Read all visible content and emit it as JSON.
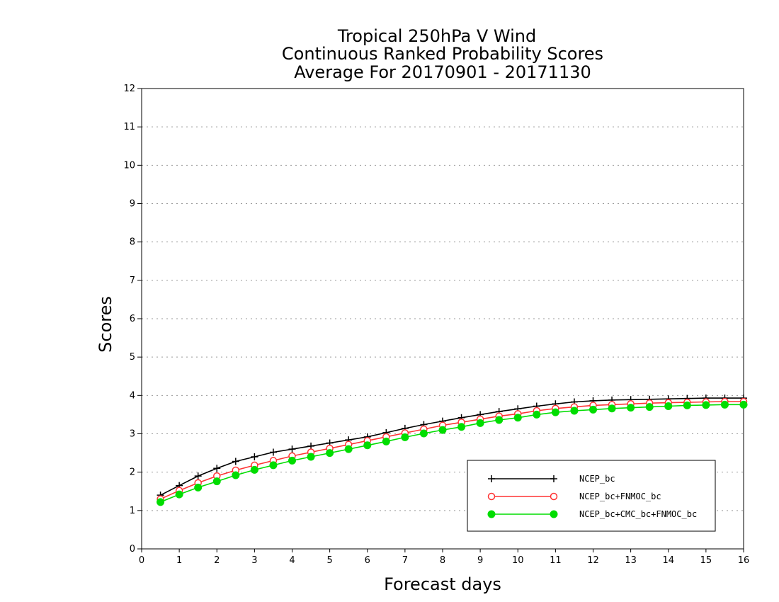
{
  "chart_data": {
    "type": "line",
    "title": [
      "Tropical 250hPa V Wind",
      "Continuous Ranked Probability Scores",
      "Average For 20170901 - 20171130"
    ],
    "xlabel": "Forecast days",
    "ylabel": "Scores",
    "xlim": [
      0,
      16
    ],
    "ylim": [
      0,
      12
    ],
    "xticks": [
      0,
      1,
      2,
      3,
      4,
      5,
      6,
      7,
      8,
      9,
      10,
      11,
      12,
      13,
      14,
      15,
      16
    ],
    "yticks": [
      0,
      1,
      2,
      3,
      4,
      5,
      6,
      7,
      8,
      9,
      10,
      11,
      12
    ],
    "grid": "horizontal dotted",
    "legend_position": "bottom-right",
    "x": [
      0.5,
      1,
      1.5,
      2,
      2.5,
      3,
      3.5,
      4,
      4.5,
      5,
      5.5,
      6,
      6.5,
      7,
      7.5,
      8,
      8.5,
      9,
      9.5,
      10,
      10.5,
      11,
      11.5,
      12,
      12.5,
      13,
      13.5,
      14,
      14.5,
      15,
      15.5,
      16
    ],
    "series": [
      {
        "name": "NCEP_bc",
        "color": "#000000",
        "marker": "plus",
        "values": [
          1.4,
          1.65,
          1.9,
          2.1,
          2.28,
          2.4,
          2.52,
          2.6,
          2.68,
          2.76,
          2.84,
          2.92,
          3.03,
          3.14,
          3.24,
          3.33,
          3.42,
          3.5,
          3.58,
          3.65,
          3.72,
          3.78,
          3.83,
          3.86,
          3.88,
          3.89,
          3.9,
          3.91,
          3.92,
          3.93,
          3.93,
          3.93
        ]
      },
      {
        "name": "NCEP_bc+FNMOC_bc",
        "color": "#ff3333",
        "marker": "open-circle",
        "values": [
          1.3,
          1.52,
          1.72,
          1.9,
          2.05,
          2.18,
          2.3,
          2.42,
          2.52,
          2.62,
          2.72,
          2.82,
          2.92,
          3.02,
          3.12,
          3.22,
          3.3,
          3.38,
          3.46,
          3.52,
          3.6,
          3.66,
          3.7,
          3.74,
          3.76,
          3.78,
          3.8,
          3.81,
          3.82,
          3.83,
          3.84,
          3.84
        ]
      },
      {
        "name": "NCEP_bc+CMC_bc+FNMOC_bc",
        "color": "#00dd00",
        "marker": "filled-circle",
        "values": [
          1.22,
          1.42,
          1.6,
          1.76,
          1.92,
          2.06,
          2.18,
          2.3,
          2.4,
          2.5,
          2.6,
          2.7,
          2.8,
          2.91,
          3.01,
          3.1,
          3.18,
          3.28,
          3.36,
          3.42,
          3.5,
          3.56,
          3.6,
          3.63,
          3.66,
          3.68,
          3.7,
          3.72,
          3.74,
          3.75,
          3.76,
          3.76
        ]
      }
    ]
  }
}
